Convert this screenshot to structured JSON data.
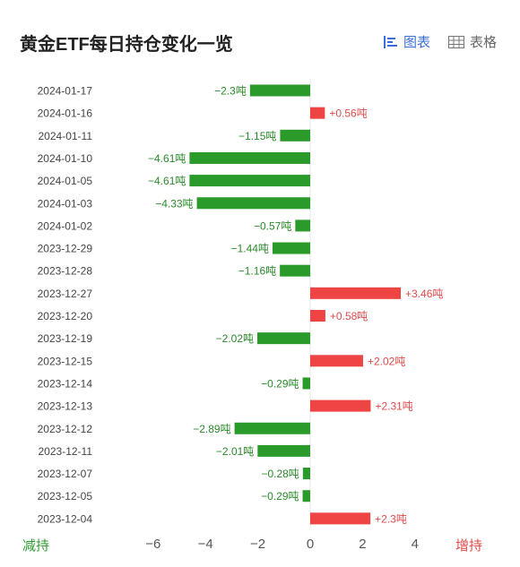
{
  "header": {
    "title": "黄金ETF每日持仓变化一览",
    "view_chart_label": "图表",
    "view_table_label": "表格"
  },
  "footer": {
    "decrease_label": "减持",
    "increase_label": "增持"
  },
  "colors": {
    "increase": "#ee4444",
    "decrease": "#2a9a2a",
    "active_tab": "#3b6fd8"
  },
  "chart_data": {
    "type": "bar",
    "orientation": "horizontal",
    "title": "黄金ETF每日持仓变化一览",
    "unit": "吨",
    "xlim": [
      -6,
      4
    ],
    "x_ticks": [
      -6,
      -4,
      -2,
      0,
      2,
      4
    ],
    "x_tick_labels": [
      "−6",
      "−4",
      "−2",
      "0",
      "2",
      "4"
    ],
    "categories": [
      "2024-01-17",
      "2024-01-16",
      "2024-01-11",
      "2024-01-10",
      "2024-01-05",
      "2024-01-03",
      "2024-01-02",
      "2023-12-29",
      "2023-12-28",
      "2023-12-27",
      "2023-12-20",
      "2023-12-19",
      "2023-12-15",
      "2023-12-14",
      "2023-12-13",
      "2023-12-12",
      "2023-12-11",
      "2023-12-07",
      "2023-12-05",
      "2023-12-04"
    ],
    "values": [
      -2.3,
      0.56,
      -1.15,
      -4.61,
      -4.61,
      -4.33,
      -0.57,
      -1.44,
      -1.16,
      3.46,
      0.58,
      -2.02,
      2.02,
      -0.29,
      2.31,
      -2.89,
      -2.01,
      -0.28,
      -0.29,
      2.3
    ],
    "data_labels": [
      "−2.3吨",
      "+0.56吨",
      "−1.15吨",
      "−4.61吨",
      "−4.61吨",
      "−4.33吨",
      "−0.57吨",
      "−1.44吨",
      "−1.16吨",
      "+3.46吨",
      "+0.58吨",
      "−2.02吨",
      "+2.02吨",
      "−0.29吨",
      "+2.31吨",
      "−2.89吨",
      "−2.01吨",
      "−0.28吨",
      "−0.29吨",
      "+2.3吨"
    ],
    "grid": false,
    "legend": "none"
  }
}
